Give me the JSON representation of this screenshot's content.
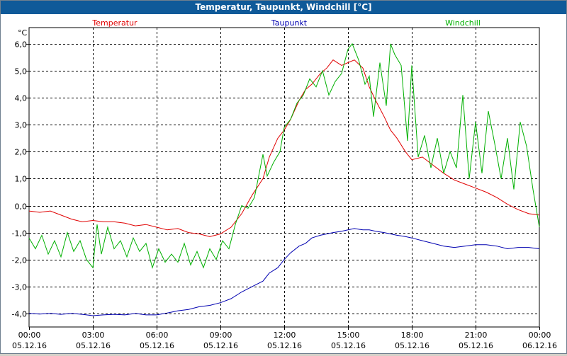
{
  "window": {
    "title": "Temperatur, Taupunkt, Windchill [°C]"
  },
  "chart_data": {
    "type": "line",
    "title": "Temperatur, Taupunkt, Windchill [°C]",
    "ylabel": "°C",
    "xlabel": "",
    "ylim": [
      -4.5,
      6.6
    ],
    "xlim": [
      0,
      24
    ],
    "grid": true,
    "legend_placement": "top",
    "y_ticks": [
      {
        "value": 6,
        "label": "6,0"
      },
      {
        "value": 5,
        "label": "5,0"
      },
      {
        "value": 4,
        "label": "4,0"
      },
      {
        "value": 3,
        "label": "3,0"
      },
      {
        "value": 2,
        "label": "2,0"
      },
      {
        "value": 1,
        "label": "1,0"
      },
      {
        "value": 0,
        "label": "0,0"
      },
      {
        "value": -1,
        "label": "-1,0"
      },
      {
        "value": -2,
        "label": "-2,0"
      },
      {
        "value": -3,
        "label": "-3,0"
      },
      {
        "value": -4,
        "label": "-4,0"
      }
    ],
    "x_ticks": [
      {
        "hour": 0,
        "time": "00:00",
        "date": "05.12.16"
      },
      {
        "hour": 3,
        "time": "03:00",
        "date": "05.12.16"
      },
      {
        "hour": 6,
        "time": "06:00",
        "date": "05.12.16"
      },
      {
        "hour": 9,
        "time": "09:00",
        "date": "05.12.16"
      },
      {
        "hour": 12,
        "time": "12:00",
        "date": "05.12.16"
      },
      {
        "hour": 15,
        "time": "15:00",
        "date": "05.12.16"
      },
      {
        "hour": 18,
        "time": "18:00",
        "date": "05.12.16"
      },
      {
        "hour": 21,
        "time": "21:00",
        "date": "05.12.16"
      },
      {
        "hour": 24,
        "time": "00:00",
        "date": "06.12.16"
      }
    ],
    "series": [
      {
        "name": "Temperatur",
        "color": "#e00000",
        "x": [
          0,
          0.5,
          1,
          1.5,
          2,
          2.5,
          3,
          3.5,
          4,
          4.5,
          5,
          5.5,
          6,
          6.5,
          7,
          7.5,
          8,
          8.5,
          9,
          9.5,
          10,
          10.5,
          11,
          11.3,
          11.7,
          12,
          12.3,
          12.7,
          13,
          13.3,
          13.7,
          14,
          14.3,
          14.7,
          15,
          15.3,
          15.7,
          16,
          16.3,
          16.7,
          17,
          17.3,
          17.7,
          18,
          18.5,
          19,
          19.5,
          20,
          20.5,
          21,
          21.5,
          22,
          22.5,
          23,
          23.5,
          24
        ],
        "values": [
          -0.2,
          -0.25,
          -0.2,
          -0.35,
          -0.5,
          -0.6,
          -0.55,
          -0.6,
          -0.6,
          -0.65,
          -0.75,
          -0.7,
          -0.8,
          -0.9,
          -0.85,
          -1.0,
          -1.05,
          -1.15,
          -1.05,
          -0.8,
          -0.3,
          0.4,
          1.0,
          1.8,
          2.5,
          2.8,
          3.2,
          3.9,
          4.3,
          4.5,
          4.9,
          5.1,
          5.4,
          5.2,
          5.3,
          5.4,
          5.1,
          4.4,
          3.9,
          3.3,
          2.8,
          2.5,
          2.0,
          1.7,
          1.8,
          1.5,
          1.2,
          0.95,
          0.8,
          0.65,
          0.5,
          0.3,
          0.05,
          -0.15,
          -0.3,
          -0.35
        ]
      },
      {
        "name": "Taupunkt",
        "color": "#0000b0",
        "x": [
          0,
          0.5,
          1,
          1.5,
          2,
          2.5,
          3,
          3.5,
          4,
          4.5,
          5,
          5.5,
          6,
          6.5,
          7,
          7.5,
          8,
          8.5,
          9,
          9.5,
          10,
          10.5,
          11,
          11.3,
          11.7,
          12,
          12.3,
          12.7,
          13,
          13.3,
          13.7,
          14,
          14.3,
          14.7,
          15,
          15.3,
          15.7,
          16,
          16.3,
          16.7,
          17,
          17.3,
          17.7,
          18,
          18.5,
          19,
          19.5,
          20,
          20.5,
          21,
          21.5,
          22,
          22.5,
          23,
          23.5,
          24
        ],
        "values": [
          -4.0,
          -4.02,
          -4.0,
          -4.03,
          -4.0,
          -4.03,
          -4.08,
          -4.05,
          -4.03,
          -4.05,
          -4.0,
          -4.05,
          -4.05,
          -3.98,
          -3.9,
          -3.85,
          -3.75,
          -3.7,
          -3.6,
          -3.45,
          -3.2,
          -3.0,
          -2.8,
          -2.5,
          -2.3,
          -2.0,
          -1.75,
          -1.5,
          -1.4,
          -1.2,
          -1.1,
          -1.05,
          -1.0,
          -0.95,
          -0.9,
          -0.85,
          -0.9,
          -0.9,
          -0.95,
          -1.0,
          -1.05,
          -1.1,
          -1.15,
          -1.2,
          -1.3,
          -1.4,
          -1.5,
          -1.55,
          -1.5,
          -1.45,
          -1.45,
          -1.5,
          -1.6,
          -1.55,
          -1.55,
          -1.6
        ]
      },
      {
        "name": "Windchill",
        "color": "#00b000",
        "x": [
          0,
          0.3,
          0.6,
          0.9,
          1.2,
          1.5,
          1.8,
          2.1,
          2.4,
          2.7,
          3.0,
          3.2,
          3.4,
          3.7,
          4.0,
          4.3,
          4.6,
          4.9,
          5.2,
          5.5,
          5.8,
          6.1,
          6.4,
          6.7,
          7.0,
          7.3,
          7.6,
          7.9,
          8.2,
          8.5,
          8.8,
          9.1,
          9.4,
          9.7,
          10.0,
          10.3,
          10.6,
          11.0,
          11.2,
          11.5,
          11.8,
          12.0,
          12.3,
          12.6,
          12.9,
          13.2,
          13.5,
          13.8,
          14.1,
          14.4,
          14.7,
          15.0,
          15.2,
          15.5,
          15.8,
          16.0,
          16.2,
          16.5,
          16.8,
          17.0,
          17.2,
          17.5,
          17.8,
          18.0,
          18.3,
          18.6,
          18.9,
          19.2,
          19.5,
          19.8,
          20.1,
          20.4,
          20.7,
          21.0,
          21.3,
          21.6,
          21.9,
          22.2,
          22.5,
          22.8,
          23.1,
          23.4,
          23.7,
          24.0
        ],
        "values": [
          -1.2,
          -1.6,
          -1.1,
          -1.8,
          -1.3,
          -1.9,
          -1.0,
          -1.7,
          -1.3,
          -2.0,
          -2.3,
          -0.7,
          -1.8,
          -0.8,
          -1.6,
          -1.3,
          -1.9,
          -1.2,
          -1.7,
          -1.4,
          -2.3,
          -1.6,
          -2.1,
          -1.8,
          -2.1,
          -1.4,
          -2.2,
          -1.7,
          -2.3,
          -1.6,
          -2.0,
          -1.3,
          -1.6,
          -0.7,
          0.0,
          -0.1,
          0.3,
          1.9,
          1.1,
          1.6,
          2.0,
          2.9,
          3.2,
          3.8,
          4.1,
          4.7,
          4.4,
          5.0,
          4.1,
          4.6,
          4.9,
          5.8,
          6.0,
          5.4,
          4.5,
          4.8,
          3.3,
          5.3,
          3.7,
          6.0,
          5.6,
          5.2,
          2.4,
          5.2,
          1.8,
          2.6,
          1.4,
          2.5,
          1.2,
          2.0,
          1.4,
          4.1,
          1.0,
          3.1,
          1.2,
          3.5,
          2.3,
          1.0,
          2.5,
          0.6,
          3.1,
          2.2,
          0.6,
          -0.8
        ]
      }
    ]
  }
}
